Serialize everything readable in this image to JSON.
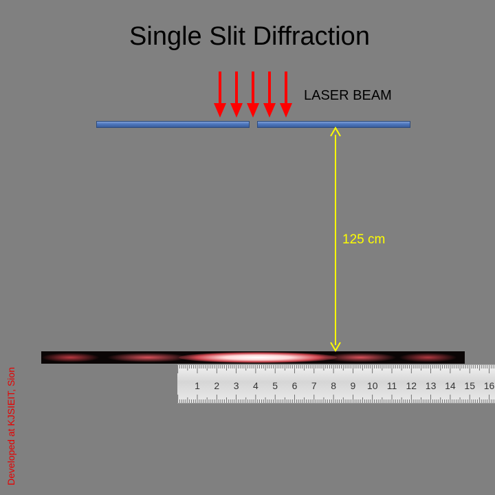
{
  "title": "Single Slit Diffraction",
  "beam_label": "LASER BEAM",
  "distance_label": "125 cm",
  "credit": "Developed at KJSIEIT, Sion",
  "ruler": {
    "ticks": [
      "1",
      "2",
      "3",
      "4",
      "5",
      "6",
      "7",
      "8",
      "9",
      "10",
      "11",
      "12",
      "13",
      "14",
      "15",
      "16"
    ]
  },
  "colors": {
    "background": "#808080",
    "laser": "#ff0000",
    "slit_plate": "#4f78be",
    "distance_marker": "#ffff00",
    "credit": "#e60000"
  }
}
